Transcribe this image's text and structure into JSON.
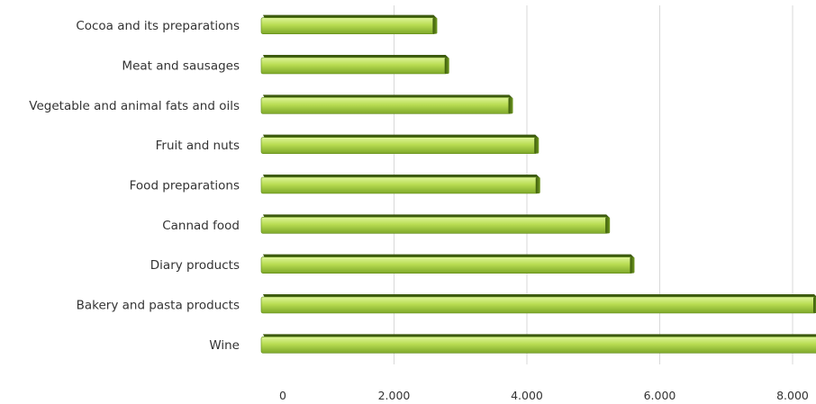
{
  "chart_data": {
    "type": "bar",
    "orientation": "horizontal",
    "categories": [
      "Cocoa and its preparations",
      "Meat and sausages",
      "Vegetable and animal fats and oils",
      "Fruit and nuts",
      "Food preparations",
      "Cannad food",
      "Diary products",
      "Bakery and pasta products",
      "Wine"
    ],
    "values": [
      2650,
      2830,
      3790,
      4180,
      4200,
      5250,
      5620,
      8380,
      8520
    ],
    "xlim": [
      0,
      8600
    ],
    "xticks": [
      0,
      2000,
      4000,
      6000,
      8000
    ],
    "xtick_labels": [
      "0",
      "2.000",
      "4.000",
      "6.000",
      "8.000"
    ],
    "grid": true,
    "legend": "none",
    "colors": {
      "bar_light": "#d4ee7c",
      "bar_mid": "#a7cf3f",
      "bar_dark": "#6d9a1e",
      "bar_edge": "#2f4a08"
    }
  }
}
